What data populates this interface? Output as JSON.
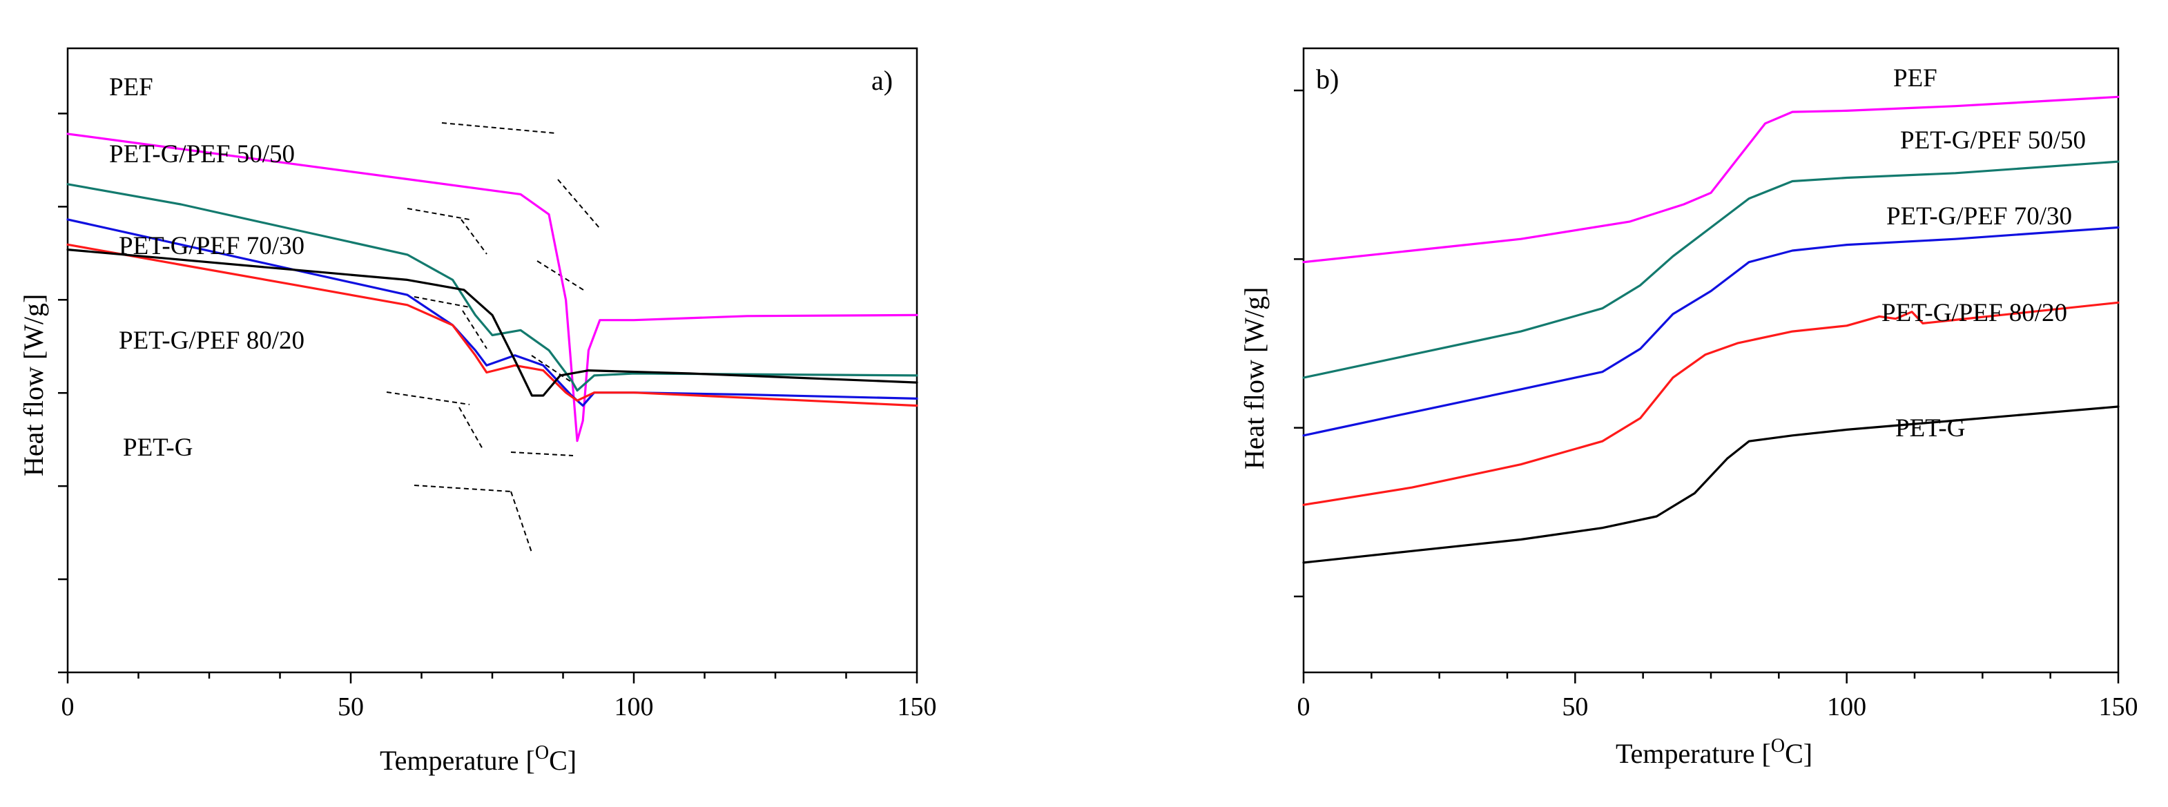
{
  "chart_data": [
    {
      "type": "line",
      "panel_label": "a)",
      "xlabel": "Temperature [°C]",
      "xlabel_main": "Temperature [",
      "xlabel_sup": "O",
      "xlabel_end": "C]",
      "ylabel": "Heat flow [W/g]",
      "xlim": [
        0,
        150
      ],
      "x_ticks": [
        0,
        50,
        100,
        150
      ],
      "y_ticks_count": 7,
      "y_tick_labels": "none",
      "grid": false,
      "legend": "curve labels placed beside each trace (left side)",
      "tangent_construction_lines": "dashed black",
      "series": [
        {
          "name": "PEF",
          "color": "#ff00ff",
          "points": [
            [
              0,
              -0.15
            ],
            [
              20,
              -0.3
            ],
            [
              40,
              -0.45
            ],
            [
              60,
              -0.6
            ],
            [
              80,
              -0.75
            ],
            [
              85,
              -0.95
            ],
            [
              88,
              -1.8
            ],
            [
              90,
              -3.2
            ],
            [
              91,
              -3.0
            ],
            [
              92,
              -2.3
            ],
            [
              94,
              -2.0
            ],
            [
              100,
              -2.0
            ],
            [
              120,
              -1.96
            ],
            [
              150,
              -1.95
            ]
          ]
        },
        {
          "name": "PET-G/PEF 50/50",
          "color": "#137a6e",
          "points": [
            [
              0,
              -0.65
            ],
            [
              20,
              -0.85
            ],
            [
              40,
              -1.1
            ],
            [
              60,
              -1.35
            ],
            [
              68,
              -1.6
            ],
            [
              72,
              -1.95
            ],
            [
              75,
              -2.15
            ],
            [
              80,
              -2.1
            ],
            [
              85,
              -2.3
            ],
            [
              89,
              -2.6
            ],
            [
              90,
              -2.7
            ],
            [
              93,
              -2.55
            ],
            [
              100,
              -2.53
            ],
            [
              150,
              -2.55
            ]
          ]
        },
        {
          "name": "PET-G/PEF 70/30",
          "color": "#1010e0",
          "points": [
            [
              0,
              -1.0
            ],
            [
              20,
              -1.25
            ],
            [
              40,
              -1.5
            ],
            [
              60,
              -1.75
            ],
            [
              68,
              -2.05
            ],
            [
              72,
              -2.3
            ],
            [
              74,
              -2.45
            ],
            [
              79,
              -2.35
            ],
            [
              84,
              -2.45
            ],
            [
              89,
              -2.75
            ],
            [
              91,
              -2.85
            ],
            [
              93,
              -2.72
            ],
            [
              100,
              -2.72
            ],
            [
              120,
              -2.74
            ],
            [
              150,
              -2.78
            ]
          ]
        },
        {
          "name": "PET-G/PEF 80/20",
          "color": "#ff1a1a",
          "points": [
            [
              0,
              -1.25
            ],
            [
              20,
              -1.45
            ],
            [
              40,
              -1.65
            ],
            [
              60,
              -1.85
            ],
            [
              68,
              -2.05
            ],
            [
              72,
              -2.35
            ],
            [
              74,
              -2.52
            ],
            [
              79,
              -2.45
            ],
            [
              84,
              -2.5
            ],
            [
              88,
              -2.72
            ],
            [
              90,
              -2.8
            ],
            [
              93,
              -2.72
            ],
            [
              100,
              -2.72
            ],
            [
              150,
              -2.85
            ]
          ]
        },
        {
          "name": "PET-G",
          "color": "#000000",
          "points": [
            [
              0,
              -1.3
            ],
            [
              20,
              -1.4
            ],
            [
              40,
              -1.5
            ],
            [
              60,
              -1.6
            ],
            [
              70,
              -1.7
            ],
            [
              75,
              -1.95
            ],
            [
              79,
              -2.4
            ],
            [
              82,
              -2.75
            ],
            [
              84,
              -2.75
            ],
            [
              87,
              -2.55
            ],
            [
              92,
              -2.5
            ],
            [
              110,
              -2.53
            ],
            [
              150,
              -2.62
            ]
          ]
        }
      ]
    },
    {
      "type": "line",
      "panel_label": "b)",
      "xlabel": "Temperature [°C]",
      "xlabel_main": "Temperature [",
      "xlabel_sup": "O",
      "xlabel_end": "C]",
      "ylabel": "Heat flow [W/g]",
      "xlim": [
        0,
        150
      ],
      "x_ticks": [
        0,
        50,
        100,
        150
      ],
      "y_ticks_count": 4,
      "y_tick_labels": "none",
      "grid": false,
      "legend": "curve labels placed beside each trace (right side)",
      "series": [
        {
          "name": "PEF",
          "color": "#ff00ff",
          "points": [
            [
              0,
              1.55
            ],
            [
              20,
              1.65
            ],
            [
              40,
              1.75
            ],
            [
              60,
              1.9
            ],
            [
              70,
              2.05
            ],
            [
              75,
              2.15
            ],
            [
              80,
              2.45
            ],
            [
              85,
              2.75
            ],
            [
              90,
              2.85
            ],
            [
              100,
              2.86
            ],
            [
              120,
              2.9
            ],
            [
              150,
              2.98
            ]
          ]
        },
        {
          "name": "PET-G/PEF 50/50",
          "color": "#137a6e",
          "points": [
            [
              0,
              0.55
            ],
            [
              20,
              0.75
            ],
            [
              40,
              0.95
            ],
            [
              55,
              1.15
            ],
            [
              62,
              1.35
            ],
            [
              68,
              1.6
            ],
            [
              75,
              1.85
            ],
            [
              82,
              2.1
            ],
            [
              90,
              2.25
            ],
            [
              100,
              2.28
            ],
            [
              120,
              2.32
            ],
            [
              150,
              2.42
            ]
          ]
        },
        {
          "name": "PET-G/PEF 70/30",
          "color": "#1010e0",
          "points": [
            [
              0,
              0.05
            ],
            [
              20,
              0.25
            ],
            [
              40,
              0.45
            ],
            [
              55,
              0.6
            ],
            [
              62,
              0.8
            ],
            [
              68,
              1.1
            ],
            [
              75,
              1.3
            ],
            [
              82,
              1.55
            ],
            [
              90,
              1.65
            ],
            [
              100,
              1.7
            ],
            [
              120,
              1.75
            ],
            [
              150,
              1.85
            ]
          ]
        },
        {
          "name": "PET-G/PEF 80/20",
          "color": "#ff1a1a",
          "points": [
            [
              0,
              -0.55
            ],
            [
              20,
              -0.4
            ],
            [
              40,
              -0.2
            ],
            [
              55,
              0.0
            ],
            [
              62,
              0.2
            ],
            [
              68,
              0.55
            ],
            [
              74,
              0.75
            ],
            [
              80,
              0.85
            ],
            [
              90,
              0.95
            ],
            [
              100,
              1.0
            ],
            [
              106,
              1.08
            ],
            [
              109,
              1.06
            ],
            [
              112,
              1.12
            ],
            [
              114,
              1.02
            ],
            [
              120,
              1.05
            ],
            [
              150,
              1.2
            ]
          ]
        },
        {
          "name": "PET-G",
          "color": "#000000",
          "points": [
            [
              0,
              -1.05
            ],
            [
              20,
              -0.95
            ],
            [
              40,
              -0.85
            ],
            [
              55,
              -0.75
            ],
            [
              65,
              -0.65
            ],
            [
              72,
              -0.45
            ],
            [
              78,
              -0.15
            ],
            [
              82,
              0.0
            ],
            [
              90,
              0.05
            ],
            [
              100,
              0.1
            ],
            [
              120,
              0.18
            ],
            [
              150,
              0.3
            ]
          ]
        }
      ]
    }
  ]
}
